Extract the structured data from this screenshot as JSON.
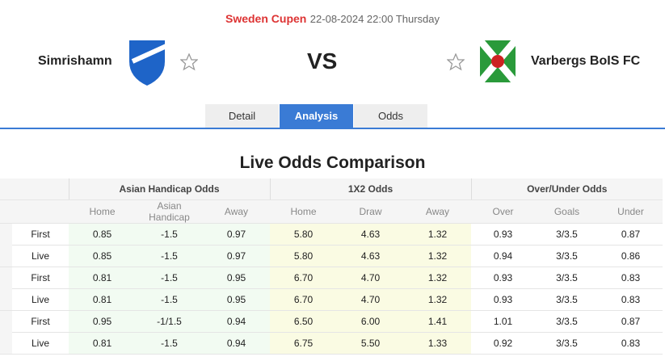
{
  "header": {
    "competition": "Sweden Cupen",
    "datetime": "22-08-2024 22:00 Thursday",
    "home_team": "Simrishamn",
    "vs": "VS",
    "away_team": "Varbergs BoIS FC"
  },
  "tabs": [
    "Detail",
    "Analysis",
    "Odds"
  ],
  "active_tab": 1,
  "title": "Live Odds Comparison",
  "table": {
    "groups": [
      "Asian Handicap Odds",
      "1X2 Odds",
      "Over/Under Odds"
    ],
    "columns": [
      "Home",
      "Asian Handicap",
      "Away",
      "Home",
      "Draw",
      "Away",
      "Over",
      "Goals",
      "Under"
    ],
    "rows": [
      [
        "First",
        "0.85",
        "-1.5",
        "0.97",
        "5.80",
        "4.63",
        "1.32",
        "0.93",
        "3/3.5",
        "0.87"
      ],
      [
        "Live",
        "0.85",
        "-1.5",
        "0.97",
        "5.80",
        "4.63",
        "1.32",
        "0.94",
        "3/3.5",
        "0.86"
      ],
      [
        "First",
        "0.81",
        "-1.5",
        "0.95",
        "6.70",
        "4.70",
        "1.32",
        "0.93",
        "3/3.5",
        "0.83"
      ],
      [
        "Live",
        "0.81",
        "-1.5",
        "0.95",
        "6.70",
        "4.70",
        "1.32",
        "0.93",
        "3/3.5",
        "0.83"
      ],
      [
        "First",
        "0.95",
        "-1/1.5",
        "0.94",
        "6.50",
        "6.00",
        "1.41",
        "1.01",
        "3/3.5",
        "0.87"
      ],
      [
        "Live",
        "0.81",
        "-1.5",
        "0.94",
        "6.75",
        "5.50",
        "1.33",
        "0.92",
        "3/3.5",
        "0.83"
      ]
    ]
  }
}
